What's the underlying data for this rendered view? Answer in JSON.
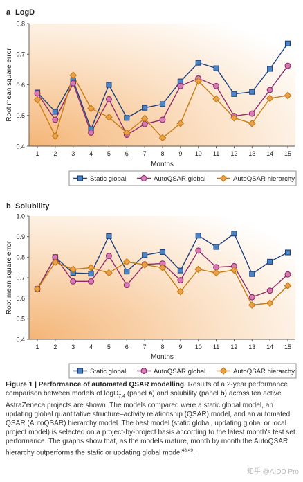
{
  "chart_data": [
    {
      "type": "line",
      "panel_letter": "a",
      "title": "LogD",
      "xlabel": "Months",
      "ylabel": "Root mean square error",
      "x": [
        1,
        2,
        3,
        4,
        5,
        6,
        7,
        8,
        9,
        10,
        11,
        12,
        13,
        14,
        15
      ],
      "ylim": [
        0.4,
        0.8
      ],
      "yticks": [
        "0.4",
        "0.5",
        "0.6",
        "0.7",
        "0.8"
      ],
      "grid": false,
      "legend": "bottom",
      "series": [
        {
          "name": "Static global",
          "marker": "square",
          "color": "#1f3f7a",
          "fill": "#4a86c5",
          "values": [
            0.575,
            0.512,
            0.615,
            0.455,
            0.6,
            0.492,
            0.525,
            0.537,
            0.611,
            0.672,
            0.654,
            0.57,
            0.577,
            0.652,
            0.735
          ]
        },
        {
          "name": "AutoQSAR global",
          "marker": "circle",
          "color": "#8e2a6a",
          "fill": "#d77bb3",
          "values": [
            0.572,
            0.486,
            0.605,
            0.444,
            0.553,
            0.437,
            0.472,
            0.486,
            0.596,
            0.621,
            0.596,
            0.498,
            0.506,
            0.583,
            0.662
          ]
        },
        {
          "name": "AutoQSAR hierarchy",
          "marker": "diamond",
          "color": "#c47a15",
          "fill": "#eaa24a",
          "values": [
            0.551,
            0.433,
            0.631,
            0.523,
            0.494,
            0.444,
            0.49,
            0.427,
            0.474,
            0.612,
            0.554,
            0.492,
            0.474,
            0.556,
            0.565
          ]
        }
      ]
    },
    {
      "type": "line",
      "panel_letter": "b",
      "title": "Solubility",
      "xlabel": "Months",
      "ylabel": "Root mean square error",
      "x": [
        1,
        2,
        3,
        4,
        5,
        6,
        7,
        8,
        9,
        10,
        11,
        12,
        13,
        14,
        15
      ],
      "ylim": [
        0.4,
        1.0
      ],
      "yticks": [
        "0.4",
        "0.5",
        "0.6",
        "0.7",
        "0.8",
        "0.9",
        "1.0"
      ],
      "grid": false,
      "legend": "bottom",
      "series": [
        {
          "name": "Static global",
          "marker": "square",
          "color": "#1f3f7a",
          "fill": "#4a86c5",
          "values": [
            0.645,
            0.8,
            0.723,
            0.72,
            0.903,
            0.73,
            0.81,
            0.825,
            0.735,
            0.905,
            0.85,
            0.915,
            0.718,
            0.778,
            0.823
          ]
        },
        {
          "name": "AutoQSAR global",
          "marker": "circle",
          "color": "#8e2a6a",
          "fill": "#d77bb3",
          "values": [
            0.645,
            0.8,
            0.682,
            0.682,
            0.806,
            0.664,
            0.765,
            0.769,
            0.688,
            0.832,
            0.751,
            0.756,
            0.605,
            0.637,
            0.716
          ]
        },
        {
          "name": "AutoQSAR hierarchy",
          "marker": "diamond",
          "color": "#c47a15",
          "fill": "#eaa24a",
          "values": [
            0.645,
            0.775,
            0.741,
            0.749,
            0.723,
            0.777,
            0.763,
            0.749,
            0.632,
            0.741,
            0.724,
            0.737,
            0.567,
            0.576,
            0.661
          ]
        }
      ]
    }
  ],
  "caption": {
    "figure_label": "Figure 1 | ",
    "figure_title": "Performance of automated QSAR modelling.",
    "text_1": " Results of a 2-year performance comparison between models of logD",
    "sub_1": "7.4",
    "text_2": " (panel ",
    "panel_a": "a",
    "text_3": ") and solubility (panel ",
    "panel_b": "b",
    "text_4": ") across ten active AstraZeneca projects are shown. The models compared were a static global model, an updating global quantitative structure–activity relationship (QSAR) model, and an automated QSAR (AutoQSAR) hierarchy model. The best model (static global, updating global or local project model) is selected on a project-by-project basis according to the latest month's test set performance. The graphs show that, as the models mature, month by month the AutoQSAR hierarchy outperforms the static or updating global model",
    "refs": "48,49",
    "end": "."
  },
  "watermark": "知乎 @AIDD Pro"
}
